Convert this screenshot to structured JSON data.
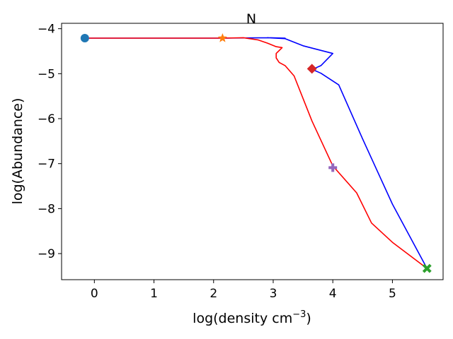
{
  "chart_data": {
    "type": "line",
    "title": "N",
    "xlabel": "log(density cm",
    "xlabel_sup": "−3",
    "xlabel_close": ")",
    "ylabel": "log(Abundance)",
    "xlim": [
      -0.55,
      5.85
    ],
    "ylim": [
      -9.58,
      -3.88
    ],
    "xticks": [
      0,
      1,
      2,
      3,
      4,
      5
    ],
    "yticks": [
      -4,
      -5,
      -6,
      -7,
      -8,
      -9
    ],
    "xtick_labels": [
      "0",
      "1",
      "2",
      "3",
      "4",
      "5"
    ],
    "ytick_labels": [
      "−4",
      "−5",
      "−6",
      "−7",
      "−8",
      "−9"
    ],
    "grid": false,
    "series": [
      {
        "color": "#0000ff",
        "x": [
          -0.2,
          2.15,
          2.9,
          3.2,
          2.9,
          3.2,
          3.5,
          4.0,
          3.8,
          3.7,
          3.65,
          3.8,
          4.1,
          4.5,
          5.0,
          5.58
        ],
        "y": [
          -4.21,
          -4.21,
          -4.2,
          -4.21,
          -4.2,
          -4.22,
          -4.38,
          -4.55,
          -4.82,
          -4.88,
          -4.9,
          -4.99,
          -5.25,
          -6.45,
          -7.9,
          -9.33
        ]
      },
      {
        "color": "#ff0000",
        "x": [
          -0.2,
          2.15,
          2.5,
          2.75,
          2.9,
          3.05,
          3.15,
          3.05,
          3.05,
          3.1,
          3.2,
          3.35,
          3.65,
          4.0,
          4.4,
          4.65,
          5.0,
          5.58
        ],
        "y": [
          -4.21,
          -4.21,
          -4.2,
          -4.25,
          -4.32,
          -4.4,
          -4.42,
          -4.55,
          -4.65,
          -4.75,
          -4.82,
          -5.05,
          -6.05,
          -7.05,
          -7.65,
          -8.32,
          -8.75,
          -9.33
        ]
      }
    ],
    "markers": [
      {
        "shape": "circle",
        "color": "#1f77b4",
        "x": -0.16,
        "y": -4.21
      },
      {
        "shape": "star",
        "color": "#ff7f0e",
        "x": 2.15,
        "y": -4.21
      },
      {
        "shape": "diamond",
        "color": "#d62728",
        "x": 3.65,
        "y": -4.89
      },
      {
        "shape": "plus",
        "color": "#9467bd",
        "x": 4.0,
        "y": -7.09
      },
      {
        "shape": "x",
        "color": "#2ca02c",
        "x": 5.58,
        "y": -9.33
      }
    ]
  }
}
